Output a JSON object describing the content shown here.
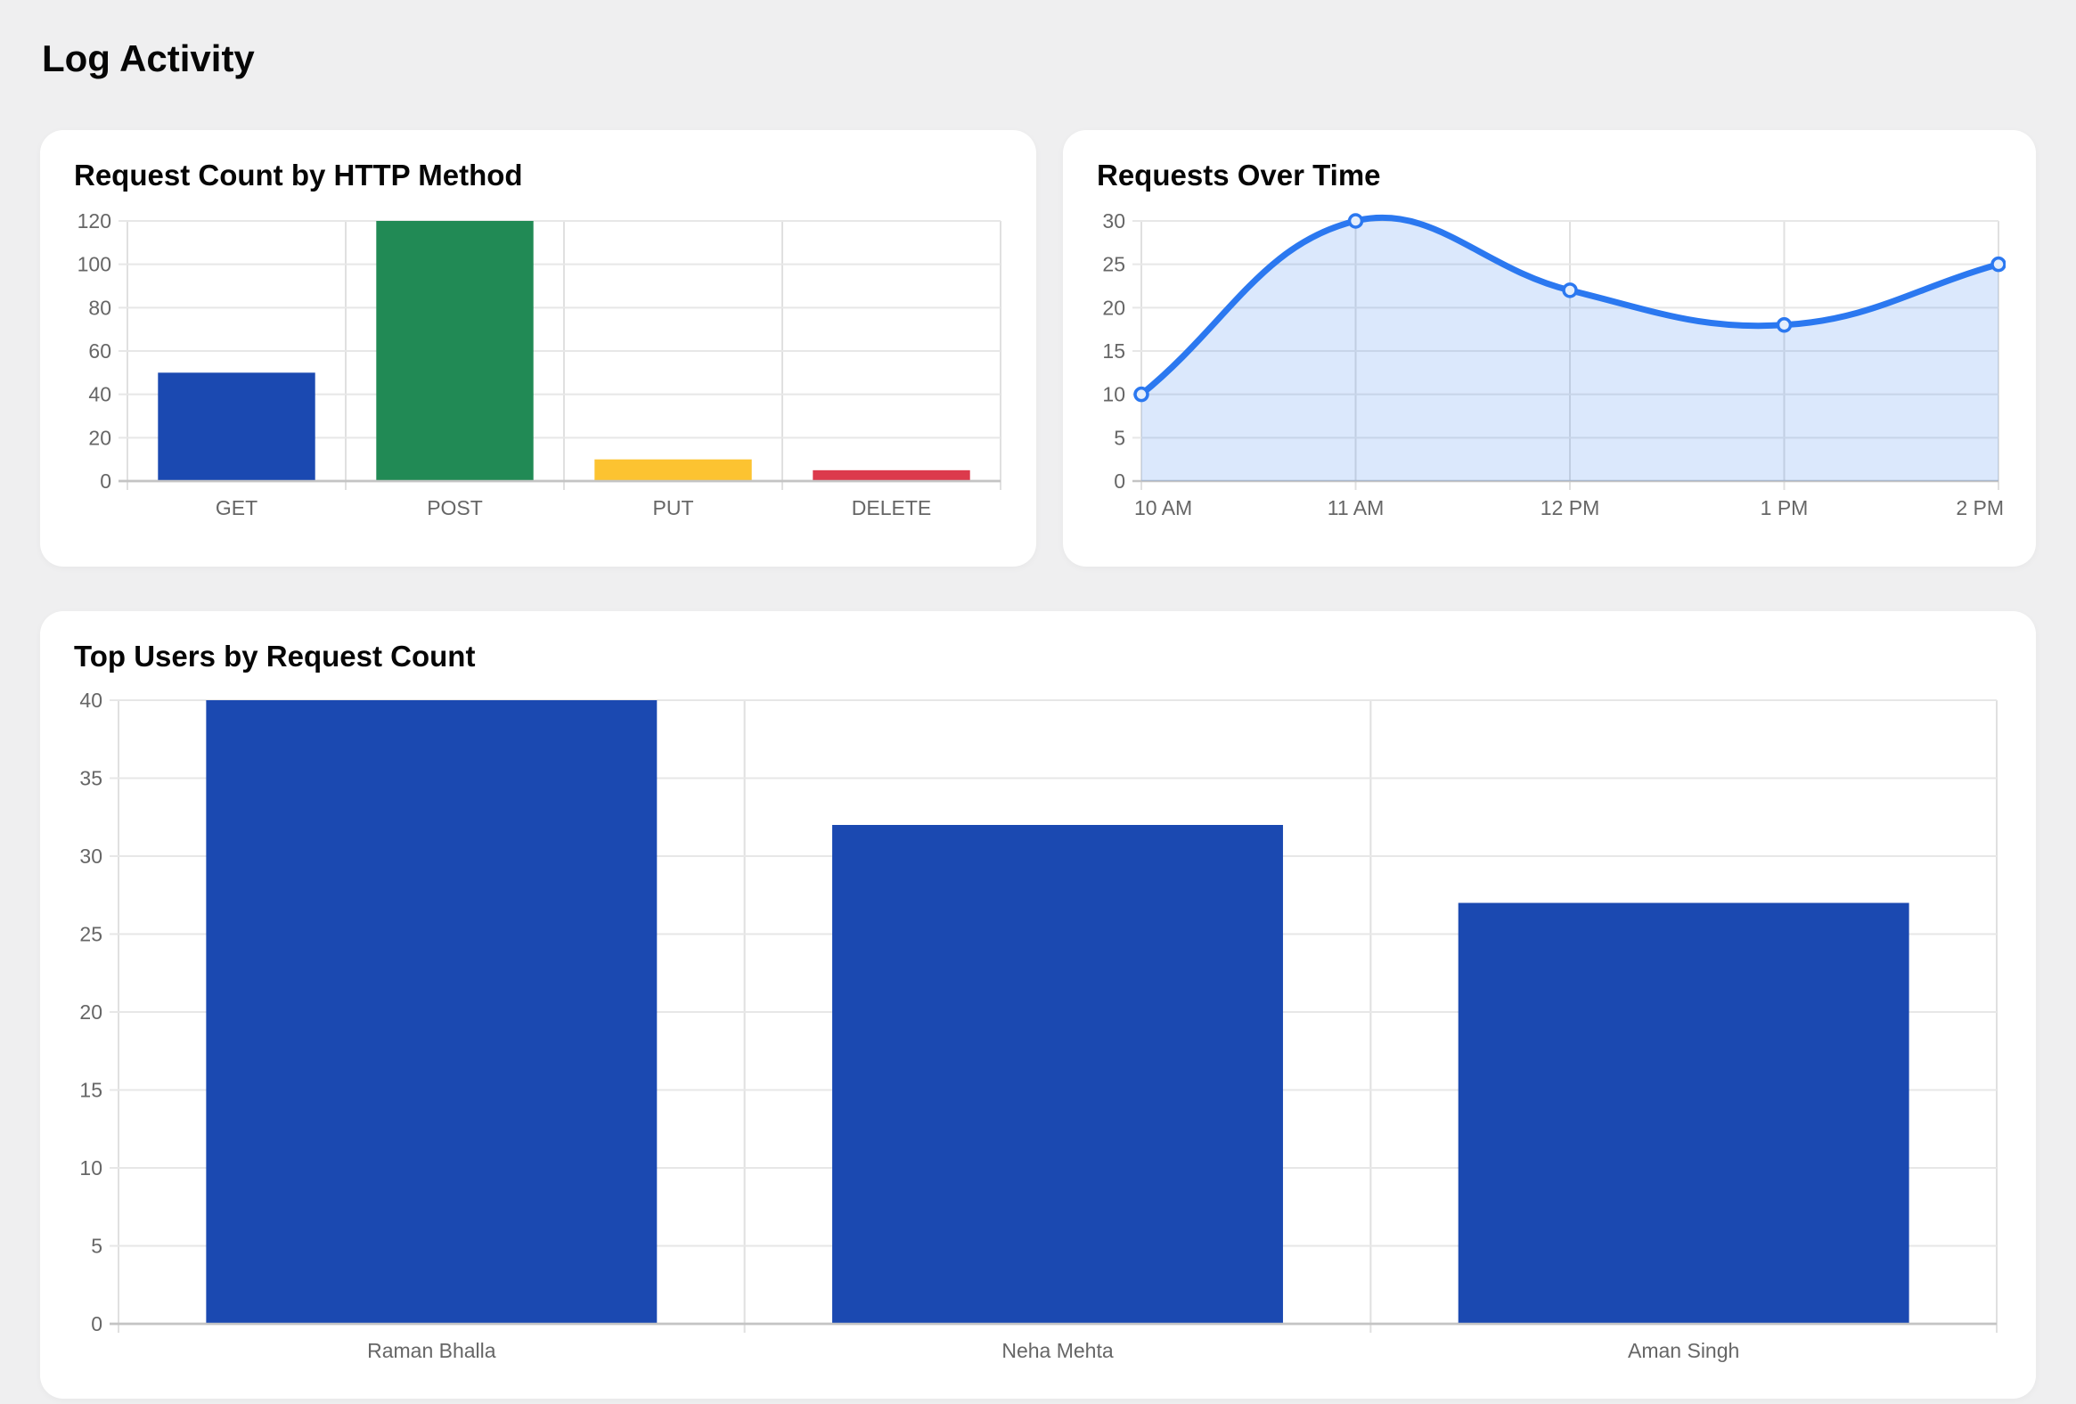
{
  "page": {
    "title": "Log Activity"
  },
  "theme": {
    "grid_color": "#e7e7e7",
    "axis_vertical_color": "#e0e0e0",
    "baseline_color": "#c4c4c4",
    "tick_label_color": "#666666"
  },
  "chart_data": [
    {
      "type": "bar",
      "title": "Request Count by HTTP Method",
      "categories": [
        "GET",
        "POST",
        "PUT",
        "DELETE"
      ],
      "values": [
        50,
        120,
        10,
        5
      ],
      "colors": [
        "#1b49b1",
        "#218a55",
        "#fcc331",
        "#dc3a4c"
      ],
      "xlabel": "",
      "ylabel": "",
      "ylim": [
        0,
        120
      ],
      "ystep": 20,
      "grid": true,
      "legend": "none"
    },
    {
      "type": "line",
      "title": "Requests Over Time",
      "x": [
        "10 AM",
        "11 AM",
        "12 PM",
        "1 PM",
        "2 PM"
      ],
      "values": [
        10,
        30,
        22,
        18,
        25
      ],
      "line_color": "#2b78f0",
      "fill_color": "rgba(43,120,240,0.17)",
      "point_fill": "#e4eefc",
      "xlabel": "",
      "ylabel": "",
      "ylim": [
        0,
        30
      ],
      "ystep": 5,
      "area": true,
      "smooth": true,
      "grid": true,
      "legend": "none"
    },
    {
      "type": "bar",
      "title": "Top Users by Request Count",
      "categories": [
        "Raman Bhalla",
        "Neha Mehta",
        "Aman Singh"
      ],
      "values": [
        40,
        32,
        27
      ],
      "colors": [
        "#1b49b1",
        "#1b49b1",
        "#1b49b1"
      ],
      "xlabel": "",
      "ylabel": "",
      "ylim": [
        0,
        40
      ],
      "ystep": 5,
      "grid": true,
      "legend": "none"
    }
  ]
}
